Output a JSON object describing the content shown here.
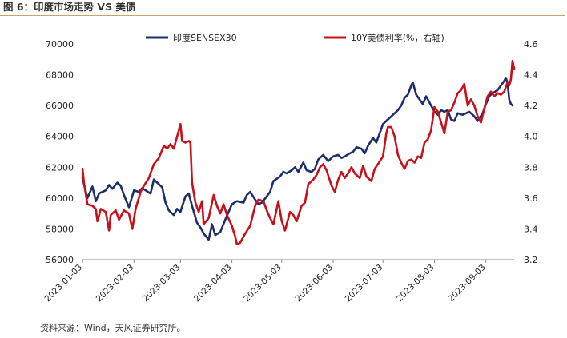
{
  "figure": {
    "title": "图 6：印度市场走势 VS  美债",
    "source": "资料来源：Wind，天风证券研究所。"
  },
  "colors": {
    "sensex": "#1c2f6b",
    "yield": "#c8101b",
    "title_rule": "#c9a46a"
  },
  "chart_data": {
    "type": "line",
    "x_tick_labels": [
      "2023-01-03",
      "2023-02-03",
      "2023-03-03",
      "2023-04-03",
      "2023-05-03",
      "2023-06-03",
      "2023-07-03",
      "2023-08-03",
      "2023-09-03"
    ],
    "x_range": [
      "2023-01-03",
      "2023-09-20"
    ],
    "legend_position": "top",
    "grid": false,
    "left_axis": {
      "min": 56000,
      "max": 70000,
      "step": 2000,
      "tick_labels": [
        "56000",
        "58000",
        "60000",
        "62000",
        "64000",
        "66000",
        "68000",
        "70000"
      ]
    },
    "right_axis": {
      "min": 3.2,
      "max": 4.6,
      "step": 0.2,
      "tick_labels": [
        "3.2",
        "3.4",
        "3.6",
        "3.8",
        "4.0",
        "4.2",
        "4.4",
        "4.6"
      ]
    },
    "series": [
      {
        "name": "印度SENSEX30",
        "axis": "left",
        "points": [
          [
            "2023-01-03",
            61300
          ],
          [
            "2023-01-06",
            60000
          ],
          [
            "2023-01-09",
            60750
          ],
          [
            "2023-01-11",
            59800
          ],
          [
            "2023-01-13",
            60300
          ],
          [
            "2023-01-17",
            60500
          ],
          [
            "2023-01-19",
            60850
          ],
          [
            "2023-01-21",
            60600
          ],
          [
            "2023-01-24",
            61000
          ],
          [
            "2023-01-26",
            60800
          ],
          [
            "2023-01-28",
            60200
          ],
          [
            "2023-01-31",
            59400
          ],
          [
            "2023-02-03",
            60500
          ],
          [
            "2023-02-06",
            60400
          ],
          [
            "2023-02-08",
            60650
          ],
          [
            "2023-02-10",
            60500
          ],
          [
            "2023-02-13",
            60300
          ],
          [
            "2023-02-15",
            61200
          ],
          [
            "2023-02-17",
            61000
          ],
          [
            "2023-02-20",
            60700
          ],
          [
            "2023-02-22",
            59700
          ],
          [
            "2023-02-24",
            59200
          ],
          [
            "2023-02-27",
            58900
          ],
          [
            "2023-03-01",
            59300
          ],
          [
            "2023-03-03",
            59100
          ],
          [
            "2023-03-06",
            60100
          ],
          [
            "2023-03-08",
            60300
          ],
          [
            "2023-03-10",
            59500
          ],
          [
            "2023-03-13",
            58400
          ],
          [
            "2023-03-15",
            58100
          ],
          [
            "2023-03-17",
            57700
          ],
          [
            "2023-03-20",
            57300
          ],
          [
            "2023-03-22",
            58300
          ],
          [
            "2023-03-24",
            57600
          ],
          [
            "2023-03-27",
            57800
          ],
          [
            "2023-03-30",
            58600
          ],
          [
            "2023-04-03",
            59600
          ],
          [
            "2023-04-06",
            59800
          ],
          [
            "2023-04-10",
            59700
          ],
          [
            "2023-04-12",
            60200
          ],
          [
            "2023-04-14",
            60400
          ],
          [
            "2023-04-17",
            59900
          ],
          [
            "2023-04-19",
            59600
          ],
          [
            "2023-04-21",
            59700
          ],
          [
            "2023-04-24",
            60100
          ],
          [
            "2023-04-26",
            60400
          ],
          [
            "2023-04-28",
            61100
          ],
          [
            "2023-05-02",
            61400
          ],
          [
            "2023-05-04",
            61700
          ],
          [
            "2023-05-06",
            61600
          ],
          [
            "2023-05-09",
            61800
          ],
          [
            "2023-05-11",
            62000
          ],
          [
            "2023-05-13",
            61700
          ],
          [
            "2023-05-16",
            62300
          ],
          [
            "2023-05-18",
            61800
          ],
          [
            "2023-05-21",
            61700
          ],
          [
            "2023-05-23",
            61900
          ],
          [
            "2023-05-25",
            62500
          ],
          [
            "2023-05-28",
            62800
          ],
          [
            "2023-05-31",
            62400
          ],
          [
            "2023-06-03",
            62700
          ],
          [
            "2023-06-06",
            62800
          ],
          [
            "2023-06-08",
            62600
          ],
          [
            "2023-06-10",
            62700
          ],
          [
            "2023-06-13",
            62900
          ],
          [
            "2023-06-15",
            63000
          ],
          [
            "2023-06-17",
            63300
          ],
          [
            "2023-06-20",
            63200
          ],
          [
            "2023-06-22",
            62900
          ],
          [
            "2023-06-24",
            63400
          ],
          [
            "2023-06-27",
            63900
          ],
          [
            "2023-06-29",
            63600
          ],
          [
            "2023-07-03",
            64800
          ],
          [
            "2023-07-06",
            65100
          ],
          [
            "2023-07-09",
            65400
          ],
          [
            "2023-07-12",
            65700
          ],
          [
            "2023-07-14",
            66000
          ],
          [
            "2023-07-16",
            66500
          ],
          [
            "2023-07-18",
            66700
          ],
          [
            "2023-07-20",
            67300
          ],
          [
            "2023-07-21",
            67500
          ],
          [
            "2023-07-23",
            66700
          ],
          [
            "2023-07-25",
            66400
          ],
          [
            "2023-07-27",
            66100
          ],
          [
            "2023-07-29",
            66600
          ],
          [
            "2023-08-01",
            66000
          ],
          [
            "2023-08-03",
            65600
          ],
          [
            "2023-08-05",
            65400
          ],
          [
            "2023-08-07",
            65700
          ],
          [
            "2023-08-09",
            65600
          ],
          [
            "2023-08-11",
            65700
          ],
          [
            "2023-08-13",
            65100
          ],
          [
            "2023-08-15",
            65000
          ],
          [
            "2023-08-17",
            65500
          ],
          [
            "2023-08-20",
            65400
          ],
          [
            "2023-08-22",
            65500
          ],
          [
            "2023-08-24",
            65600
          ],
          [
            "2023-08-27",
            65300
          ],
          [
            "2023-08-29",
            65000
          ],
          [
            "2023-09-01",
            65500
          ],
          [
            "2023-09-03",
            66100
          ],
          [
            "2023-09-05",
            66600
          ],
          [
            "2023-09-07",
            66800
          ],
          [
            "2023-09-10",
            67000
          ],
          [
            "2023-09-12",
            67300
          ],
          [
            "2023-09-14",
            67600
          ],
          [
            "2023-09-15",
            67800
          ],
          [
            "2023-09-16",
            67500
          ],
          [
            "2023-09-17",
            66400
          ],
          [
            "2023-09-18",
            66100
          ],
          [
            "2023-09-19",
            66000
          ]
        ]
      },
      {
        "name": "10Y美债利率(%，右轴)",
        "axis": "right",
        "points": [
          [
            "2023-01-03",
            3.79
          ],
          [
            "2023-01-04",
            3.69
          ],
          [
            "2023-01-06",
            3.56
          ],
          [
            "2023-01-09",
            3.55
          ],
          [
            "2023-01-11",
            3.53
          ],
          [
            "2023-01-12",
            3.45
          ],
          [
            "2023-01-14",
            3.53
          ],
          [
            "2023-01-17",
            3.51
          ],
          [
            "2023-01-19",
            3.39
          ],
          [
            "2023-01-20",
            3.49
          ],
          [
            "2023-01-23",
            3.52
          ],
          [
            "2023-01-25",
            3.46
          ],
          [
            "2023-01-28",
            3.52
          ],
          [
            "2023-01-31",
            3.5
          ],
          [
            "2023-02-02",
            3.4
          ],
          [
            "2023-02-04",
            3.53
          ],
          [
            "2023-02-07",
            3.64
          ],
          [
            "2023-02-09",
            3.68
          ],
          [
            "2023-02-12",
            3.73
          ],
          [
            "2023-02-15",
            3.82
          ],
          [
            "2023-02-18",
            3.86
          ],
          [
            "2023-02-21",
            3.94
          ],
          [
            "2023-02-23",
            3.92
          ],
          [
            "2023-02-25",
            3.95
          ],
          [
            "2023-02-27",
            3.92
          ],
          [
            "2023-03-01",
            4.0
          ],
          [
            "2023-03-03",
            4.08
          ],
          [
            "2023-03-04",
            3.97
          ],
          [
            "2023-03-06",
            3.96
          ],
          [
            "2023-03-08",
            3.97
          ],
          [
            "2023-03-09",
            3.96
          ],
          [
            "2023-03-10",
            3.7
          ],
          [
            "2023-03-12",
            3.57
          ],
          [
            "2023-03-14",
            3.51
          ],
          [
            "2023-03-16",
            3.58
          ],
          [
            "2023-03-17",
            3.43
          ],
          [
            "2023-03-20",
            3.47
          ],
          [
            "2023-03-23",
            3.62
          ],
          [
            "2023-03-25",
            3.55
          ],
          [
            "2023-03-27",
            3.5
          ],
          [
            "2023-03-29",
            3.56
          ],
          [
            "2023-03-31",
            3.49
          ],
          [
            "2023-04-03",
            3.42
          ],
          [
            "2023-04-05",
            3.35
          ],
          [
            "2023-04-06",
            3.3
          ],
          [
            "2023-04-08",
            3.31
          ],
          [
            "2023-04-11",
            3.37
          ],
          [
            "2023-04-14",
            3.42
          ],
          [
            "2023-04-17",
            3.55
          ],
          [
            "2023-04-19",
            3.59
          ],
          [
            "2023-04-22",
            3.58
          ],
          [
            "2023-04-24",
            3.52
          ],
          [
            "2023-04-26",
            3.47
          ],
          [
            "2023-04-28",
            3.43
          ],
          [
            "2023-05-01",
            3.58
          ],
          [
            "2023-05-03",
            3.45
          ],
          [
            "2023-05-05",
            3.39
          ],
          [
            "2023-05-08",
            3.51
          ],
          [
            "2023-05-10",
            3.49
          ],
          [
            "2023-05-12",
            3.45
          ],
          [
            "2023-05-15",
            3.55
          ],
          [
            "2023-05-17",
            3.57
          ],
          [
            "2023-05-19",
            3.69
          ],
          [
            "2023-05-22",
            3.72
          ],
          [
            "2023-05-24",
            3.75
          ],
          [
            "2023-05-26",
            3.8
          ],
          [
            "2023-05-28",
            3.82
          ],
          [
            "2023-05-30",
            3.78
          ],
          [
            "2023-06-02",
            3.68
          ],
          [
            "2023-06-04",
            3.64
          ],
          [
            "2023-06-06",
            3.72
          ],
          [
            "2023-06-08",
            3.77
          ],
          [
            "2023-06-10",
            3.73
          ],
          [
            "2023-06-12",
            3.76
          ],
          [
            "2023-06-14",
            3.8
          ],
          [
            "2023-06-16",
            3.76
          ],
          [
            "2023-06-19",
            3.73
          ],
          [
            "2023-06-21",
            3.81
          ],
          [
            "2023-06-23",
            3.74
          ],
          [
            "2023-06-26",
            3.71
          ],
          [
            "2023-06-28",
            3.79
          ],
          [
            "2023-06-30",
            3.82
          ],
          [
            "2023-07-03",
            3.87
          ],
          [
            "2023-07-05",
            4.02
          ],
          [
            "2023-07-06",
            4.06
          ],
          [
            "2023-07-08",
            4.06
          ],
          [
            "2023-07-10",
            4.0
          ],
          [
            "2023-07-12",
            3.88
          ],
          [
            "2023-07-14",
            3.83
          ],
          [
            "2023-07-16",
            3.79
          ],
          [
            "2023-07-18",
            3.84
          ],
          [
            "2023-07-20",
            3.85
          ],
          [
            "2023-07-22",
            3.83
          ],
          [
            "2023-07-24",
            3.87
          ],
          [
            "2023-07-26",
            3.86
          ],
          [
            "2023-07-28",
            3.96
          ],
          [
            "2023-07-30",
            3.98
          ],
          [
            "2023-08-01",
            4.04
          ],
          [
            "2023-08-03",
            4.19
          ],
          [
            "2023-08-05",
            4.16
          ],
          [
            "2023-08-07",
            4.09
          ],
          [
            "2023-08-09",
            4.02
          ],
          [
            "2023-08-11",
            4.16
          ],
          [
            "2023-08-13",
            4.17
          ],
          [
            "2023-08-15",
            4.22
          ],
          [
            "2023-08-17",
            4.28
          ],
          [
            "2023-08-19",
            4.3
          ],
          [
            "2023-08-21",
            4.34
          ],
          [
            "2023-08-23",
            4.2
          ],
          [
            "2023-08-25",
            4.24
          ],
          [
            "2023-08-27",
            4.2
          ],
          [
            "2023-08-29",
            4.13
          ],
          [
            "2023-08-31",
            4.09
          ],
          [
            "2023-09-02",
            4.18
          ],
          [
            "2023-09-04",
            4.26
          ],
          [
            "2023-09-06",
            4.29
          ],
          [
            "2023-09-08",
            4.26
          ],
          [
            "2023-09-10",
            4.28
          ],
          [
            "2023-09-12",
            4.27
          ],
          [
            "2023-09-14",
            4.29
          ],
          [
            "2023-09-16",
            4.35
          ],
          [
            "2023-09-17",
            4.33
          ],
          [
            "2023-09-18",
            4.37
          ],
          [
            "2023-09-19",
            4.49
          ],
          [
            "2023-09-20",
            4.44
          ]
        ]
      }
    ]
  }
}
